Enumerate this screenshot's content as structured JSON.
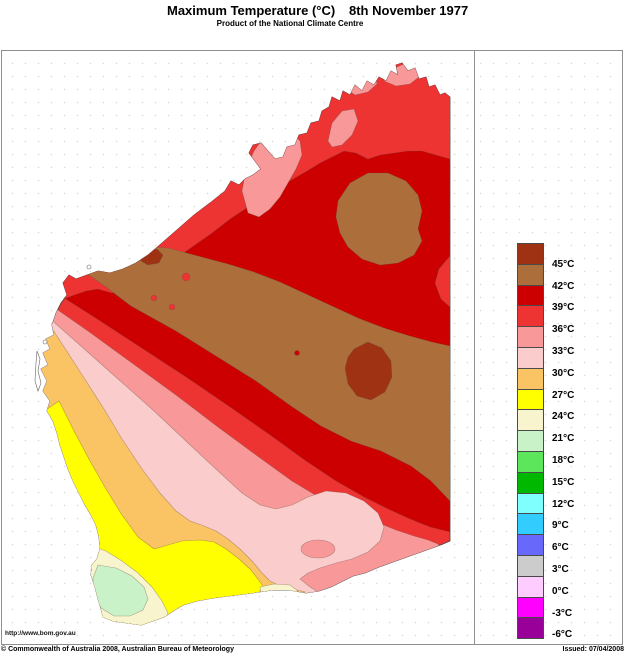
{
  "header": {
    "title": "Maximum Temperature (°C)",
    "date": "8th November 1977",
    "subtitle": "Product of the National Climate Centre"
  },
  "map_panel": {
    "url_text": "http://www.bom.gov.au",
    "region": "Western Australia"
  },
  "footer": {
    "copyright": "© Commonwealth of Australia 2008, Australian Bureau of Meteorology",
    "issued": "Issued: 07/04/2008"
  },
  "legend": {
    "unit": "°C",
    "bands": [
      {
        "color": "#9E3212",
        "label": "45°C"
      },
      {
        "color": "#AC6F3B",
        "label": "42°C"
      },
      {
        "color": "#CC0000",
        "label": "39°C"
      },
      {
        "color": "#EE3333",
        "label": "36°C"
      },
      {
        "color": "#F89898",
        "label": "33°C"
      },
      {
        "color": "#FACCCC",
        "label": "30°C"
      },
      {
        "color": "#FAC364",
        "label": "27°C"
      },
      {
        "color": "#FFFF00",
        "label": "24°C"
      },
      {
        "color": "#F8F5CE",
        "label": "21°C"
      },
      {
        "color": "#C9F2C9",
        "label": "18°C"
      },
      {
        "color": "#5CE65C",
        "label": "15°C"
      },
      {
        "color": "#00B800",
        "label": "12°C"
      },
      {
        "color": "#80FFFF",
        "label": "9°C"
      },
      {
        "color": "#33CCFF",
        "label": "6°C"
      },
      {
        "color": "#6868FA",
        "label": "3°C"
      },
      {
        "color": "#CCCCCC",
        "label": "0°C"
      },
      {
        "color": "#FFCCFF",
        "label": "-3°C"
      },
      {
        "color": "#FF00FF",
        "label": "-6°C"
      },
      {
        "color": "#990099",
        "label": null
      }
    ]
  },
  "chart_data": {
    "type": "filled-contour-temperature-map",
    "variable": "Maximum Temperature",
    "unit": "°C",
    "date": "8th November 1977",
    "region": "Western Australia",
    "issued": "07/04/2008",
    "source": "Australian Bureau of Meteorology, National Climate Centre",
    "scale_thresholds_c": [
      45,
      42,
      39,
      36,
      33,
      30,
      27,
      24,
      21,
      18,
      15,
      12,
      9,
      6,
      3,
      0,
      -3,
      -6
    ],
    "bands_on_map": [
      {
        "range": "over 45",
        "color": "#9E3212",
        "where": "two interior pockets: central-east hotspot and small Pilbara pocket"
      },
      {
        "range": "42–45",
        "color": "#AC6F3B",
        "where": "large central interior mass plus east-Kimberley blob"
      },
      {
        "range": "39–42",
        "color": "#CC0000",
        "where": "broad belt around the brown interior, Kimberley inland"
      },
      {
        "range": "36–39",
        "color": "#EE3333",
        "where": "north coastal strip and belt southwest of dark red"
      },
      {
        "range": "33–36",
        "color": "#F89898",
        "where": "northwest peninsulas and band toward southeast coast"
      },
      {
        "range": "30–33",
        "color": "#FACCCC",
        "where": "wide band reaching the south coast near Esperance"
      },
      {
        "range": "27–30",
        "color": "#FAC364",
        "where": "band inland of west coast and along south coast"
      },
      {
        "range": "24–27",
        "color": "#FFFF00",
        "where": "lower west coastal strip and southwest"
      },
      {
        "range": "21–24",
        "color": "#F8F5CE",
        "where": "far southwest corner and small south-coast patch"
      },
      {
        "range": "18–21",
        "color": "#C9F2C9",
        "where": "extreme southwest tip (coolest on map)"
      }
    ]
  }
}
